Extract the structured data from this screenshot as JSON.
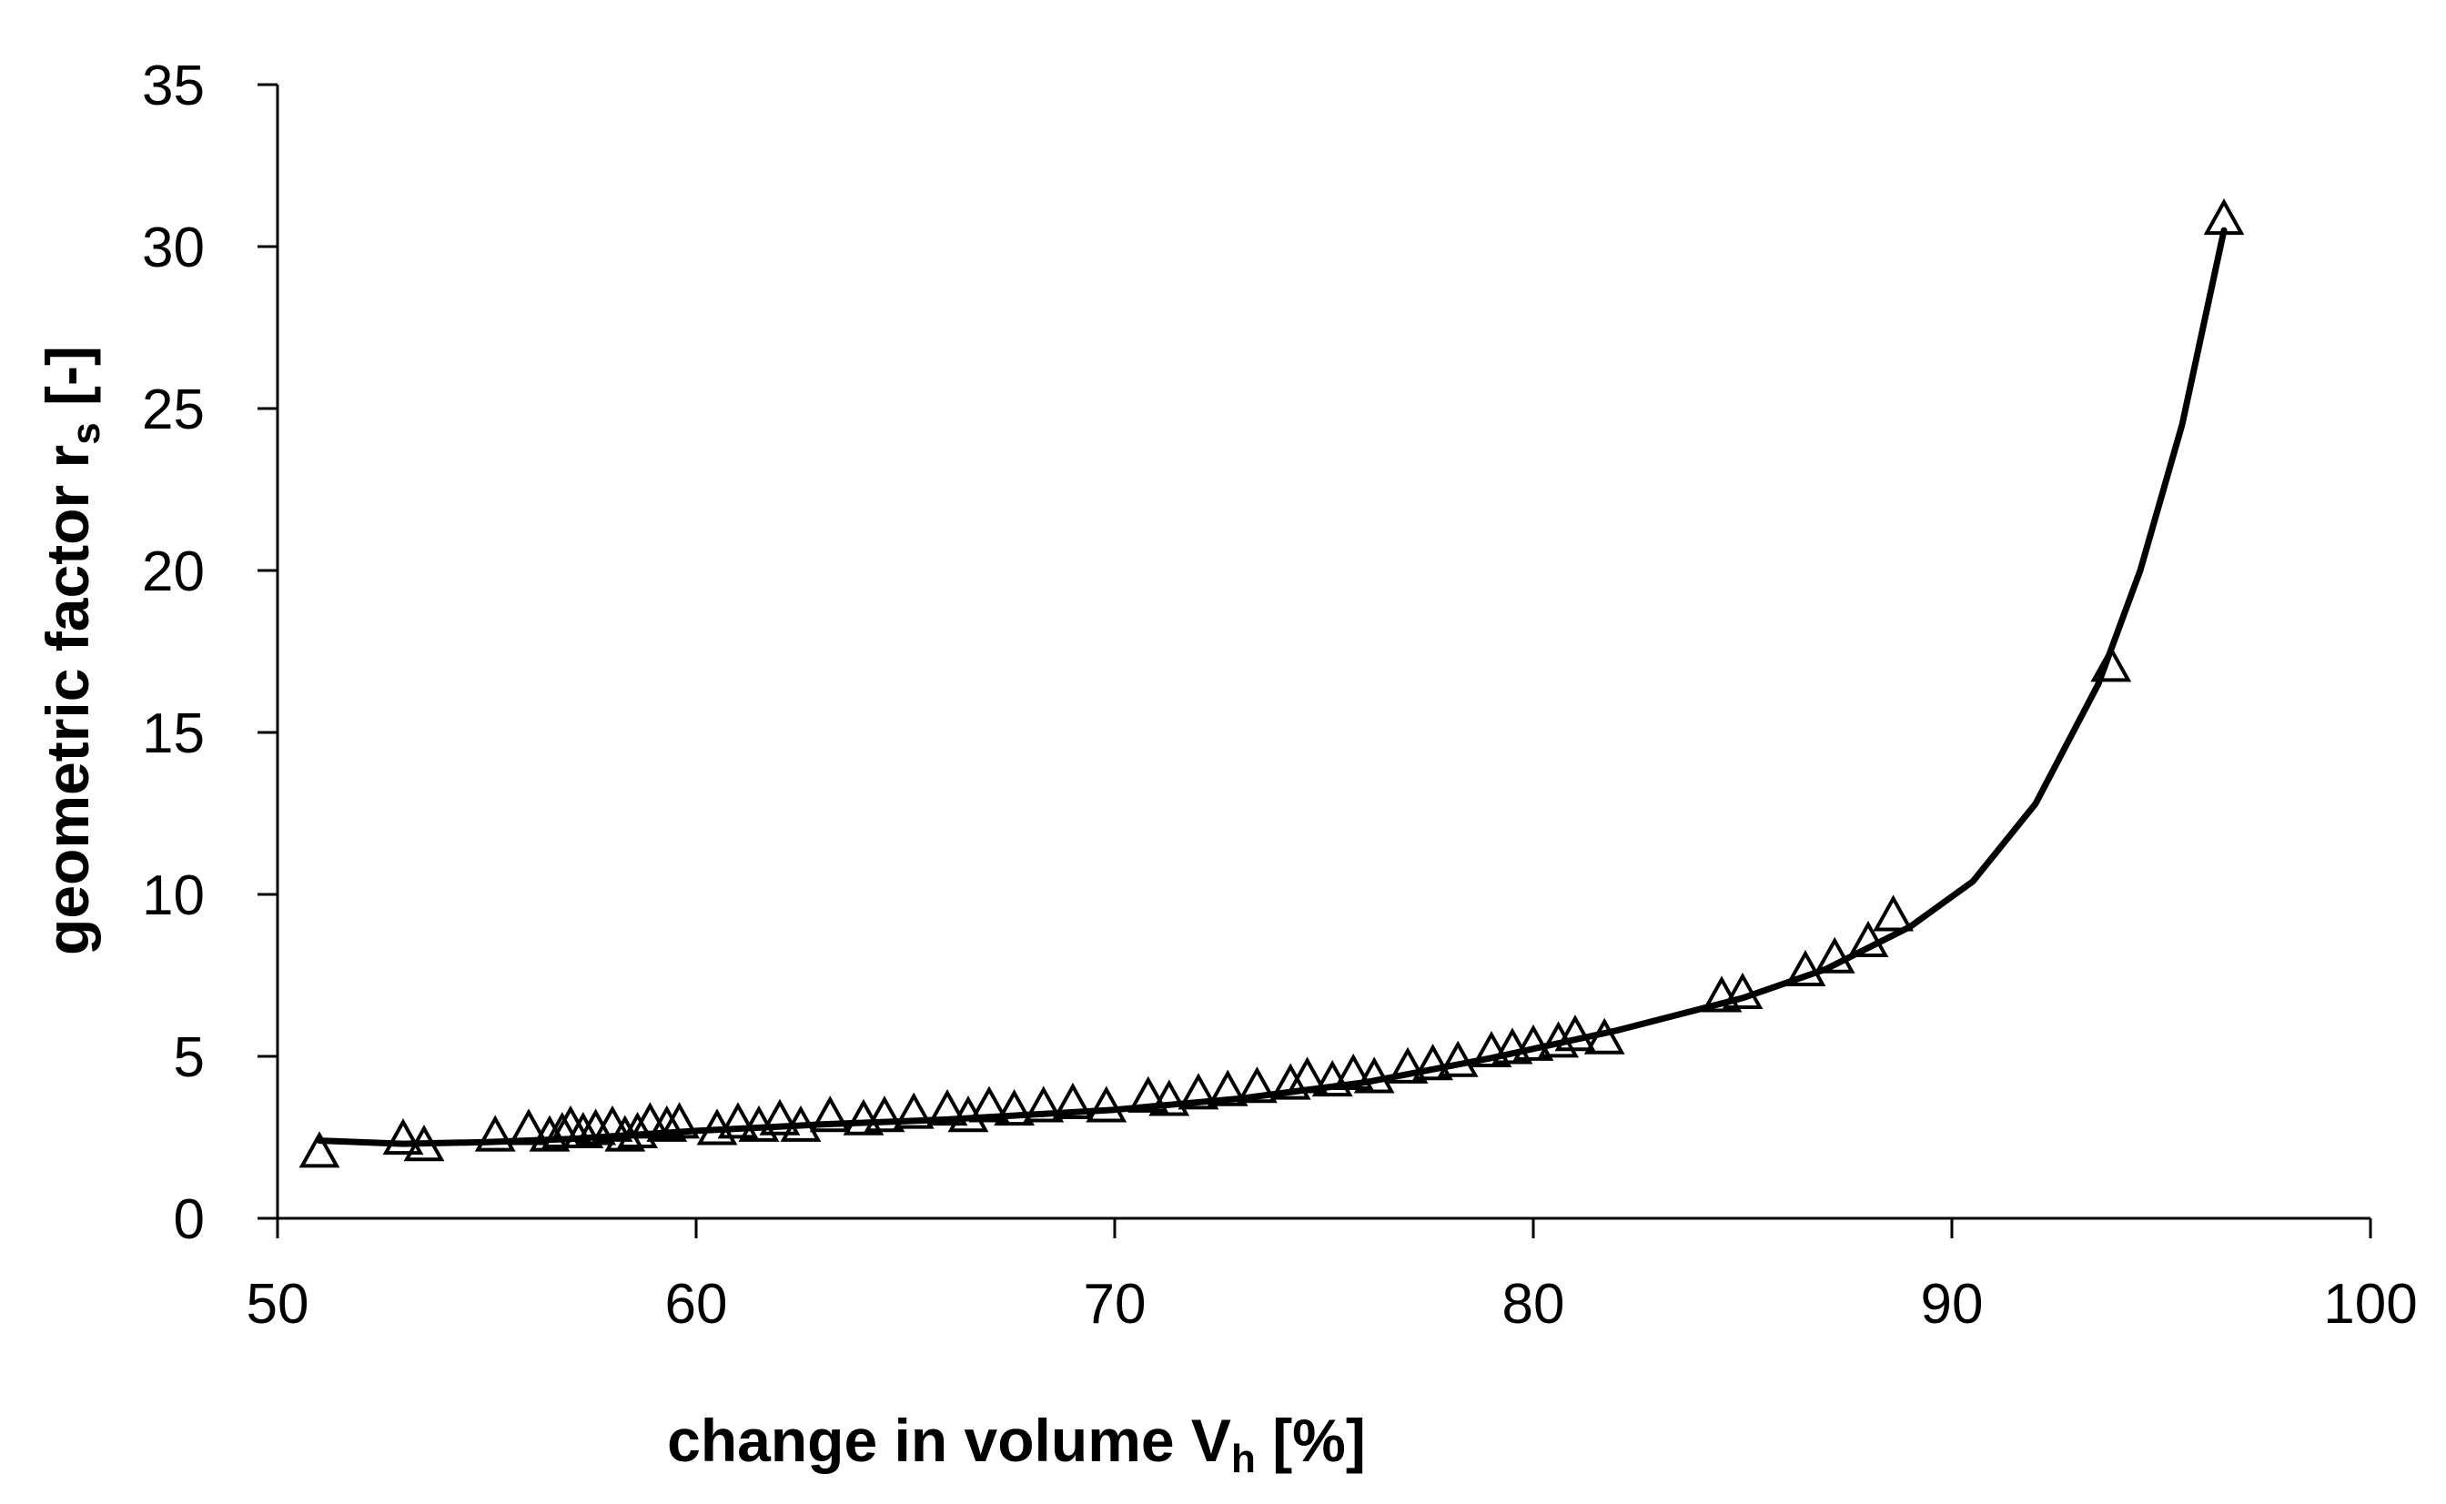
{
  "chart_data": {
    "type": "scatter",
    "title": "",
    "xlabel": {
      "main": "change in volume V",
      "sub": "h",
      "suffix": " [%]"
    },
    "ylabel": {
      "main": "geometric factor r",
      "sub": "s",
      "suffix": " [-]"
    },
    "xlim": [
      50,
      100
    ],
    "ylim": [
      0,
      35
    ],
    "xticks": [
      50,
      60,
      70,
      80,
      90,
      100
    ],
    "yticks": [
      0,
      5,
      10,
      15,
      20,
      25,
      30,
      35
    ],
    "grid": false,
    "legend": "none",
    "marker": "open-triangle",
    "color": "#000000",
    "series": [
      {
        "kind": "points",
        "points": [
          [
            51.0,
            2.0
          ],
          [
            53.0,
            2.4
          ],
          [
            53.5,
            2.2
          ],
          [
            55.2,
            2.5
          ],
          [
            56.0,
            2.7
          ],
          [
            56.5,
            2.5
          ],
          [
            56.8,
            2.6
          ],
          [
            57.0,
            2.8
          ],
          [
            57.3,
            2.6
          ],
          [
            57.6,
            2.7
          ],
          [
            58.0,
            2.8
          ],
          [
            58.3,
            2.5
          ],
          [
            58.6,
            2.6
          ],
          [
            58.9,
            2.9
          ],
          [
            59.3,
            2.8
          ],
          [
            59.6,
            2.9
          ],
          [
            60.5,
            2.7
          ],
          [
            61.0,
            2.9
          ],
          [
            61.5,
            2.8
          ],
          [
            62.0,
            3.0
          ],
          [
            62.5,
            2.8
          ],
          [
            63.2,
            3.1
          ],
          [
            64.0,
            3.0
          ],
          [
            64.5,
            3.1
          ],
          [
            65.2,
            3.2
          ],
          [
            66.0,
            3.3
          ],
          [
            66.5,
            3.1
          ],
          [
            67.0,
            3.4
          ],
          [
            67.6,
            3.3
          ],
          [
            68.3,
            3.4
          ],
          [
            69.0,
            3.5
          ],
          [
            69.8,
            3.4
          ],
          [
            70.8,
            3.7
          ],
          [
            71.3,
            3.6
          ],
          [
            72.0,
            3.8
          ],
          [
            72.7,
            3.9
          ],
          [
            73.4,
            4.0
          ],
          [
            74.2,
            4.1
          ],
          [
            74.6,
            4.3
          ],
          [
            75.2,
            4.2
          ],
          [
            75.7,
            4.4
          ],
          [
            76.2,
            4.3
          ],
          [
            77.0,
            4.6
          ],
          [
            77.6,
            4.7
          ],
          [
            78.2,
            4.8
          ],
          [
            79.0,
            5.1
          ],
          [
            79.5,
            5.2
          ],
          [
            80.0,
            5.3
          ],
          [
            80.6,
            5.4
          ],
          [
            81.0,
            5.6
          ],
          [
            81.7,
            5.5
          ],
          [
            84.5,
            6.8
          ],
          [
            85.0,
            6.9
          ],
          [
            86.5,
            7.6
          ],
          [
            87.2,
            8.0
          ],
          [
            88.0,
            8.5
          ],
          [
            88.6,
            9.3
          ],
          [
            93.8,
            17.0
          ],
          [
            96.5,
            30.8
          ]
        ]
      },
      {
        "kind": "fit-curve",
        "points": [
          [
            51.0,
            2.4
          ],
          [
            53.0,
            2.3
          ],
          [
            55.0,
            2.35
          ],
          [
            57.0,
            2.45
          ],
          [
            60.0,
            2.7
          ],
          [
            63.0,
            2.9
          ],
          [
            66.0,
            3.05
          ],
          [
            70.0,
            3.35
          ],
          [
            73.0,
            3.7
          ],
          [
            76.0,
            4.2
          ],
          [
            79.0,
            4.95
          ],
          [
            82.0,
            5.8
          ],
          [
            85.0,
            6.8
          ],
          [
            87.0,
            7.7
          ],
          [
            89.0,
            9.0
          ],
          [
            90.5,
            10.4
          ],
          [
            92.0,
            12.8
          ],
          [
            93.5,
            16.5
          ],
          [
            94.5,
            20.0
          ],
          [
            95.5,
            24.5
          ],
          [
            96.5,
            30.5
          ]
        ]
      }
    ]
  }
}
